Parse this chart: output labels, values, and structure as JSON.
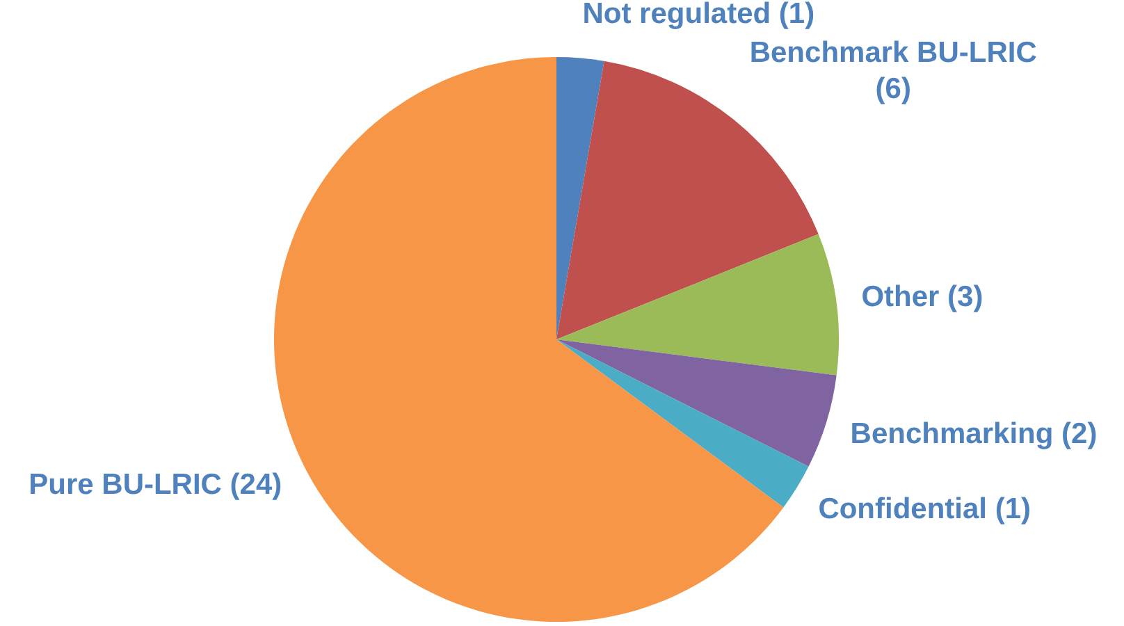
{
  "chart_data": {
    "type": "pie",
    "categories": [
      "Not regulated (1)",
      "Benchmark BU-LRIC (6)",
      "Other (3)",
      "Benchmarking (2)",
      "Confidential (1)",
      "Pure BU-LRIC (24)"
    ],
    "values": [
      1,
      6,
      3,
      2,
      1,
      24
    ],
    "colors": [
      "#4f81bd",
      "#c0504d",
      "#9bbb59",
      "#8064a2",
      "#4bacc6",
      "#f79646"
    ],
    "legend": false
  }
}
